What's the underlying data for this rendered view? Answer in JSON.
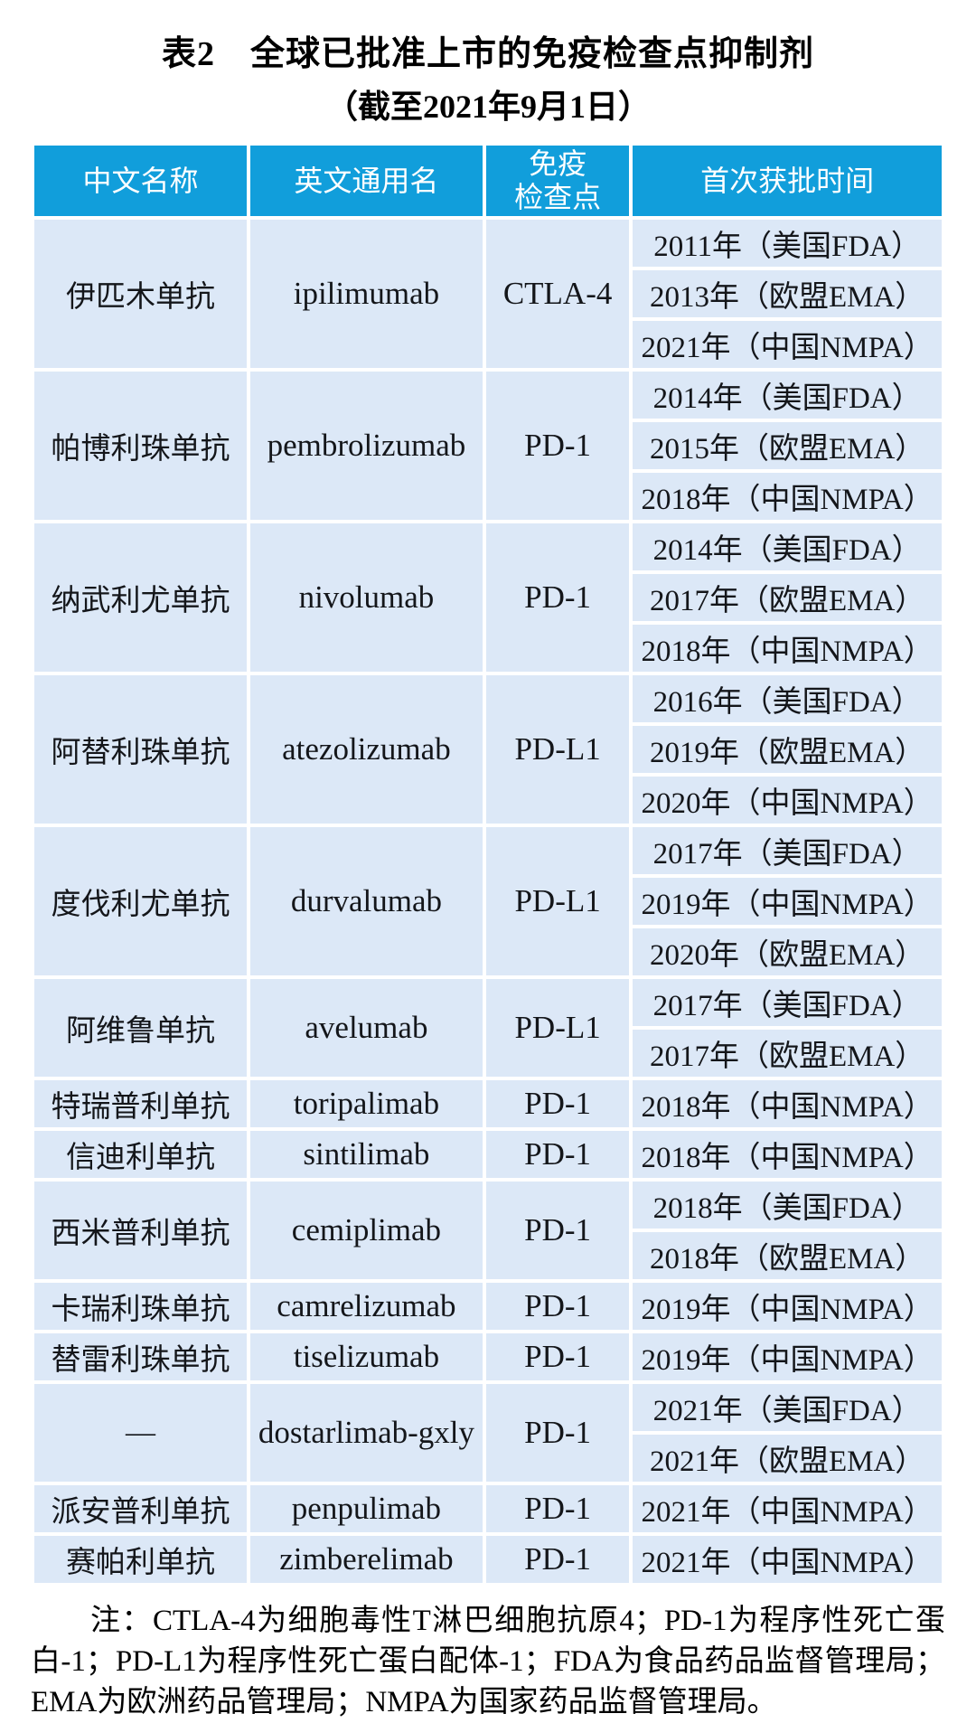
{
  "title": "表2　全球已批准上市的免疫检查点抑制剂",
  "subtitle": "（截至2021年9月1日）",
  "columns": [
    "中文名称",
    "英文通用名",
    "免疫\n检查点",
    "首次获批时间"
  ],
  "rows": [
    {
      "zh": "伊匹木单抗",
      "en": "ipilimumab",
      "checkpoint": "CTLA-4",
      "approvals": [
        "2011年（美国FDA）",
        "2013年（欧盟EMA）",
        "2021年（中国NMPA）"
      ]
    },
    {
      "zh": "帕博利珠单抗",
      "en": "pembrolizumab",
      "checkpoint": "PD-1",
      "approvals": [
        "2014年（美国FDA）",
        "2015年（欧盟EMA）",
        "2018年（中国NMPA）"
      ]
    },
    {
      "zh": "纳武利尤单抗",
      "en": "nivolumab",
      "checkpoint": "PD-1",
      "approvals": [
        "2014年（美国FDA）",
        "2017年（欧盟EMA）",
        "2018年（中国NMPA）"
      ]
    },
    {
      "zh": "阿替利珠单抗",
      "en": "atezolizumab",
      "checkpoint": "PD-L1",
      "approvals": [
        "2016年（美国FDA）",
        "2019年（欧盟EMA）",
        "2020年（中国NMPA）"
      ]
    },
    {
      "zh": "度伐利尤单抗",
      "en": "durvalumab",
      "checkpoint": "PD-L1",
      "approvals": [
        "2017年（美国FDA）",
        "2019年（中国NMPA）",
        "2020年（欧盟EMA）"
      ]
    },
    {
      "zh": "阿维鲁单抗",
      "en": "avelumab",
      "checkpoint": "PD-L1",
      "approvals": [
        "2017年（美国FDA）",
        "2017年（欧盟EMA）"
      ]
    },
    {
      "zh": "特瑞普利单抗",
      "en": "toripalimab",
      "checkpoint": "PD-1",
      "approvals": [
        "2018年（中国NMPA）"
      ]
    },
    {
      "zh": "信迪利单抗",
      "en": "sintilimab",
      "checkpoint": "PD-1",
      "approvals": [
        "2018年（中国NMPA）"
      ]
    },
    {
      "zh": "西米普利单抗",
      "en": "cemiplimab",
      "checkpoint": "PD-1",
      "approvals": [
        "2018年（美国FDA）",
        "2018年（欧盟EMA）"
      ]
    },
    {
      "zh": "卡瑞利珠单抗",
      "en": "camrelizumab",
      "checkpoint": "PD-1",
      "approvals": [
        "2019年（中国NMPA）"
      ]
    },
    {
      "zh": "替雷利珠单抗",
      "en": "tiselizumab",
      "checkpoint": "PD-1",
      "approvals": [
        "2019年（中国NMPA）"
      ]
    },
    {
      "zh": "—",
      "en": "dostarlimab-gxly",
      "checkpoint": "PD-1",
      "approvals": [
        "2021年（美国FDA）",
        "2021年（欧盟EMA）"
      ]
    },
    {
      "zh": "派安普利单抗",
      "en": "penpulimab",
      "checkpoint": "PD-1",
      "approvals": [
        "2021年（中国NMPA）"
      ]
    },
    {
      "zh": "赛帕利单抗",
      "en": "zimberelimab",
      "checkpoint": "PD-1",
      "approvals": [
        "2021年（中国NMPA）"
      ]
    }
  ],
  "note": "注：CTLA-4为细胞毒性T淋巴细胞抗原4；PD-1为程序性死亡蛋白-1；PD-L1为程序性死亡蛋白配体-1；FDA为食品药品监督管理局；EMA为欧洲药品管理局；NMPA为国家药品监督管理局。",
  "colors": {
    "header_bg": "#119edb",
    "cell_bg": "#dce8f7",
    "header_text": "#ffffff",
    "body_text": "#14161a",
    "grid": "#ffffff"
  }
}
